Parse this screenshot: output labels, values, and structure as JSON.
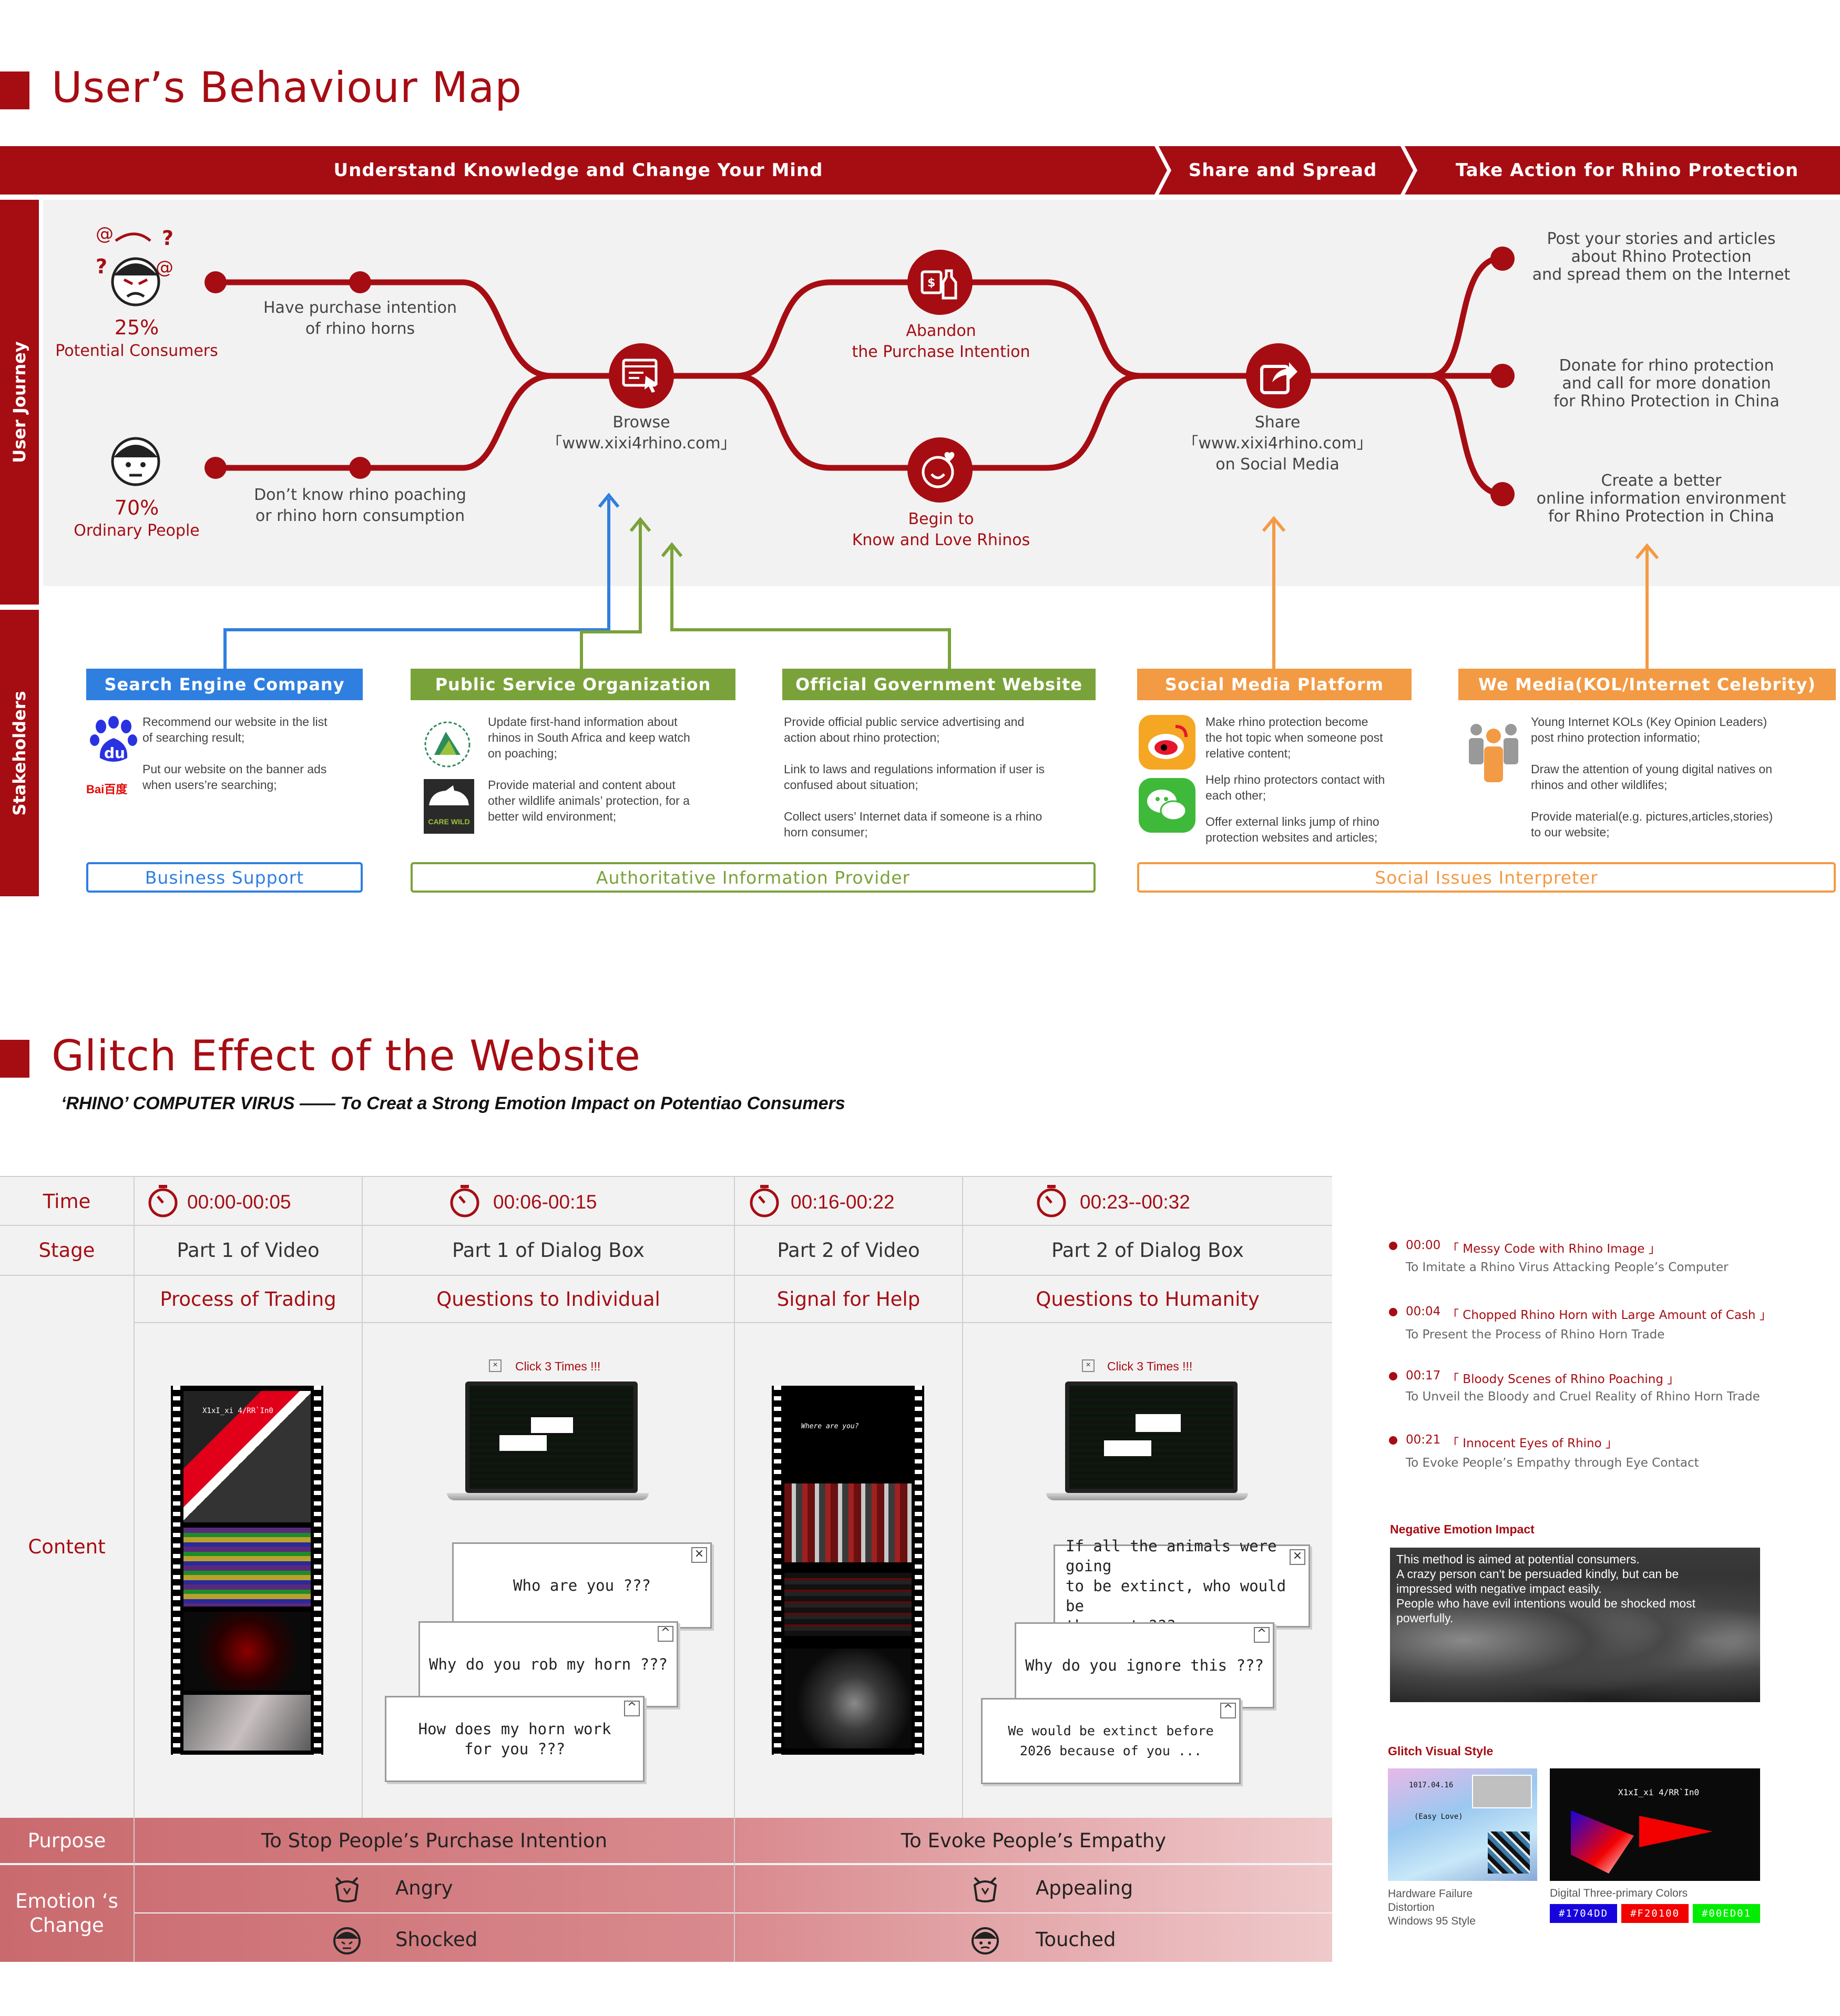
{
  "behaviour_map": {
    "title": "User’s Behaviour Map",
    "phases": [
      "Understand Knowledge and Change Your Mind",
      "Share and Spread",
      "Take Action for Rhino Protection"
    ],
    "side_labels": {
      "journey": "User Journey",
      "stakeholders": "Stakeholders"
    },
    "groups": [
      {
        "percent": "25%",
        "label": "Potential Consumers",
        "step": "Have purchase intention\nof rhino horns"
      },
      {
        "percent": "70%",
        "label": "Ordinary People",
        "step": "Don’t know rhino poaching\nor rhino horn consumption"
      }
    ],
    "nodes": {
      "browse": "Browse\n「www.xixi4rhino.com」",
      "abandon": "Abandon\nthe Purchase Intention",
      "begin": "Begin to\nKnow and Love Rhinos",
      "share": "Share\n「www.xixi4rhino.com」\non Social Media"
    },
    "actions": [
      "Post your stories and articles\nabout Rhino Protection\nand spread them on the Internet",
      "Donate for rhino protection\nand call for more donation\nfor Rhino Protection in China",
      "Create a better\nonline information environment\nfor Rhino Protection in China"
    ],
    "stakeholders": [
      {
        "name": "Search Engine Company",
        "color": "#2f7fe0",
        "items": [
          "Recommend our website in the list\nof searching result;",
          "Put our website on the banner ads\nwhen users’re searching;"
        ],
        "logo_text": "Bai百度"
      },
      {
        "name": "Public Service Organization",
        "color": "#7aa23a",
        "items": [
          "Update first-hand information about\nrhinos in South Africa and keep watch\non poaching;",
          "Provide material and content about\nother wildlife animals’ protection, for a\nbetter wild environment;"
        ],
        "logo_text": "CARE WILD"
      },
      {
        "name": "Official Government Website",
        "color": "#7aa23a",
        "items": [
          "Provide official public service advertising and\naction about rhino protection;",
          "Link to laws and regulations information if user is\nconfused about situation;",
          "Collect users’ Internet data if someone is a rhino\nhorn consumer;"
        ]
      },
      {
        "name": "Social Media Platform",
        "color": "#f39a44",
        "items": [
          "Make rhino protection become\nthe hot topic when someone post\nrelative content;",
          "Help rhino protectors contact with\neach other;",
          "Offer external links jump of rhino\nprotection websites and articles;"
        ]
      },
      {
        "name": "We Media(KOL/Internet Celebrity)",
        "color": "#f39a44",
        "items": [
          "Young Internet KOLs (Key Opinion Leaders)\npost rhino protection informatio;",
          "Draw the attention of young digital natives on\nrhinos and other wildlifes;",
          "Provide material(e.g. pictures,articles,stories)\nto our website;"
        ]
      }
    ],
    "roles": [
      {
        "label": "Business Support",
        "color": "#2f7fe0"
      },
      {
        "label": "Authoritative Information Provider",
        "color": "#7aa23a"
      },
      {
        "label": "Social Issues Interpreter",
        "color": "#f39a44"
      }
    ]
  },
  "glitch": {
    "title": "Glitch Effect of the Website",
    "subtitle": "‘RHINO’ COMPUTER VIRUS —— To Creat a Strong Emotion Impact on Potentiao Consumers",
    "row_labels": {
      "time": "Time",
      "stage": "Stage",
      "content": "Content",
      "purpose": "Purpose",
      "emotion": "Emotion ‘s\nChange"
    },
    "columns": [
      {
        "time": "00:00-00:05",
        "stage": "Part 1 of Video",
        "content": "Process of Trading"
      },
      {
        "time": "00:06-00:15",
        "stage": "Part 1 of Dialog Box",
        "content": "Questions to Individual"
      },
      {
        "time": "00:16-00:22",
        "stage": "Part 2 of Video",
        "content": "Signal for Help"
      },
      {
        "time": "00:23--00:32",
        "stage": "Part 2 of Dialog Box",
        "content": "Questions to Humanity"
      }
    ],
    "click_hint": "Click 3 Times !!!",
    "film_caption": "Where are you?",
    "glitch_code": "X1xI_xi 4/RR`In0",
    "dialogs_individual": [
      "Who are you ???",
      "Why do you rob my horn ???",
      "How does my horn work\nfor you ???"
    ],
    "dialogs_humanity": [
      "If all the animals were going\nto be extinct, who would be\nthe next ???",
      "Why do you ignore this ???",
      "We would be extinct before\n2026 because of you ..."
    ],
    "purposes": [
      "To Stop People’s Purchase Intention",
      "To Evoke People’s Empathy"
    ],
    "emotions": [
      [
        "Angry",
        "Shocked"
      ],
      [
        "Appealing",
        "Touched"
      ]
    ],
    "timeline": [
      {
        "time": "00:00",
        "title": "「 Messy Code with Rhino Image 」",
        "sub": "To Imitate a Rhino Virus Attacking People’s Computer"
      },
      {
        "time": "00:04",
        "title": "「 Chopped Rhino Horn with Large Amount of Cash 」",
        "sub": "To Present the Process of Rhino Horn Trade"
      },
      {
        "time": "00:17",
        "title": "「 Bloody Scenes of Rhino Poaching 」",
        "sub": "To Unveil the Bloody and Cruel Reality of Rhino Horn Trade"
      },
      {
        "time": "00:21",
        "title": "「 Innocent Eyes of Rhino 」",
        "sub": "To Evoke People’s Empathy through Eye Contact"
      }
    ],
    "negative": {
      "heading": "Negative Emotion Impact",
      "text": "This method is aimed at potential consumers.\nA crazy person can't be persuaded kindly, but can be\nimpressed with negative impact easily.\nPeople who have evil intentions would be shocked most\npowerfully."
    },
    "visual_style": {
      "heading": "Glitch Visual Style",
      "caption_left": "Hardware Failure\nDistortion\nWindows 95 Style",
      "caption_right": "Digital Three-primary Colors",
      "win95_text": "1017.04.16",
      "win95_label": "(Easy Love)"
    },
    "swatches": [
      "#1704DD",
      "#F20100",
      "#00ED01"
    ]
  }
}
